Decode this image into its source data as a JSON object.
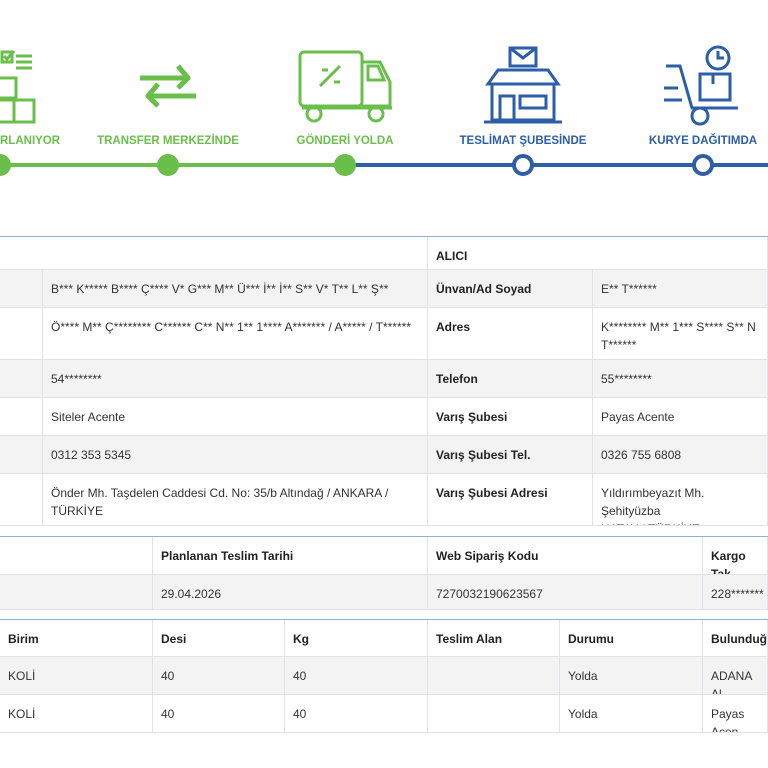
{
  "steps": [
    "RLANIYOR",
    "TRANSFER MERKEZİNDE",
    "GÖNDERİ YOLDA",
    "TESLİMAT ŞUBESİNDE",
    "KURYE DAĞITIMDA"
  ],
  "parties": {
    "receiver_title": "ALICI",
    "rows": [
      [
        "B*** K***** B**** Ç**** V* G*** M** Ü*** İ** İ** S** V* T** L** Ş**",
        "Ünvan/Ad Soyad",
        "E** T******"
      ],
      [
        "Ö**** M** Ç******** C****** C** N** 1** 1**** A******* / A***** / T******",
        "Adres",
        "K******** M** 1*** S**** S** N\nT******"
      ],
      [
        "54********",
        "Telefon",
        "55********"
      ],
      [
        "Siteler Acente",
        "Varış Şubesi",
        "Payas Acente"
      ],
      [
        "0312 353 5345",
        "Varış Şubesi Tel.",
        "0326 755 6808"
      ],
      [
        "Önder Mh. Taşdelen Caddesi Cd. No: 35/b Altındağ / ANKARA / TÜRKİYE",
        "Varış Şubesi Adresi",
        "Yıldırımbeyazıt Mh. Şehityüzba\nHATAY / TÜRKİYE"
      ]
    ]
  },
  "shipment": {
    "headers": [
      null,
      "Planlanan Teslim Tarihi",
      "Web Sipariş Kodu",
      "Kargo Tak"
    ],
    "rows": [
      [
        null,
        "29.04.2026",
        "7270032190623567",
        "228*******"
      ]
    ]
  },
  "pieces": {
    "headers": [
      "Birim",
      "Desi",
      "Kg",
      "Teslim Alan",
      "Durumu",
      "Bulunduğ"
    ],
    "rows": [
      [
        "KOLİ",
        "40",
        "40",
        null,
        "Yolda",
        "ADANA Al"
      ],
      [
        "KOLİ",
        "40",
        "40",
        null,
        "Yolda",
        "Payas Acen"
      ]
    ]
  }
}
